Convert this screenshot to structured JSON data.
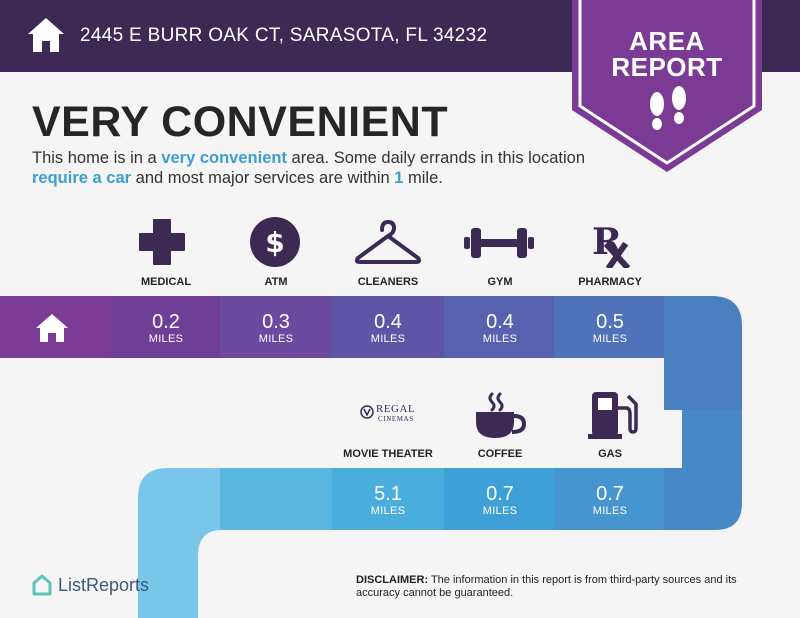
{
  "header": {
    "address": "2445 E BURR OAK CT, SARASOTA, FL 34232",
    "badge_line1": "AREA",
    "badge_line2": "REPORT"
  },
  "title": "VERY CONVENIENT",
  "description": {
    "p1": "This home is in a ",
    "h1": "very convenient",
    "p2": " area. Some daily errands in this location ",
    "h2": "require a car",
    "p3": " and most major services are within ",
    "h3": "1",
    "p4": " mile."
  },
  "services_top": [
    {
      "label": "MEDICAL",
      "distance": "0.2",
      "unit": "MILES",
      "icon": "medical-cross-icon"
    },
    {
      "label": "ATM",
      "distance": "0.3",
      "unit": "MILES",
      "icon": "dollar-coin-icon"
    },
    {
      "label": "CLEANERS",
      "distance": "0.4",
      "unit": "MILES",
      "icon": "hanger-icon"
    },
    {
      "label": "GYM",
      "distance": "0.4",
      "unit": "MILES",
      "icon": "dumbbell-icon"
    },
    {
      "label": "PHARMACY",
      "distance": "0.5",
      "unit": "MILES",
      "icon": "rx-icon"
    }
  ],
  "services_bottom": [
    {
      "label": "MOVIE THEATER",
      "distance": "5.1",
      "unit": "MILES",
      "icon": "regal-cinemas-logo"
    },
    {
      "label": "COFFEE",
      "distance": "0.7",
      "unit": "MILES",
      "icon": "coffee-cup-icon"
    },
    {
      "label": "GAS",
      "distance": "0.7",
      "unit": "MILES",
      "icon": "gas-pump-icon"
    }
  ],
  "regal": {
    "name": "REGAL",
    "sub": "CINEMAS"
  },
  "footer": {
    "logo_text": "ListReports",
    "disclaimer_label": "DISCLAIMER:",
    "disclaimer_text": " The information in this report is from third-party sources and its accuracy cannot be guaranteed."
  },
  "colors": {
    "header": "#3c2a55",
    "badge": "#7b3a93",
    "highlight": "#3d9fd0",
    "icon": "#3c2a55"
  }
}
